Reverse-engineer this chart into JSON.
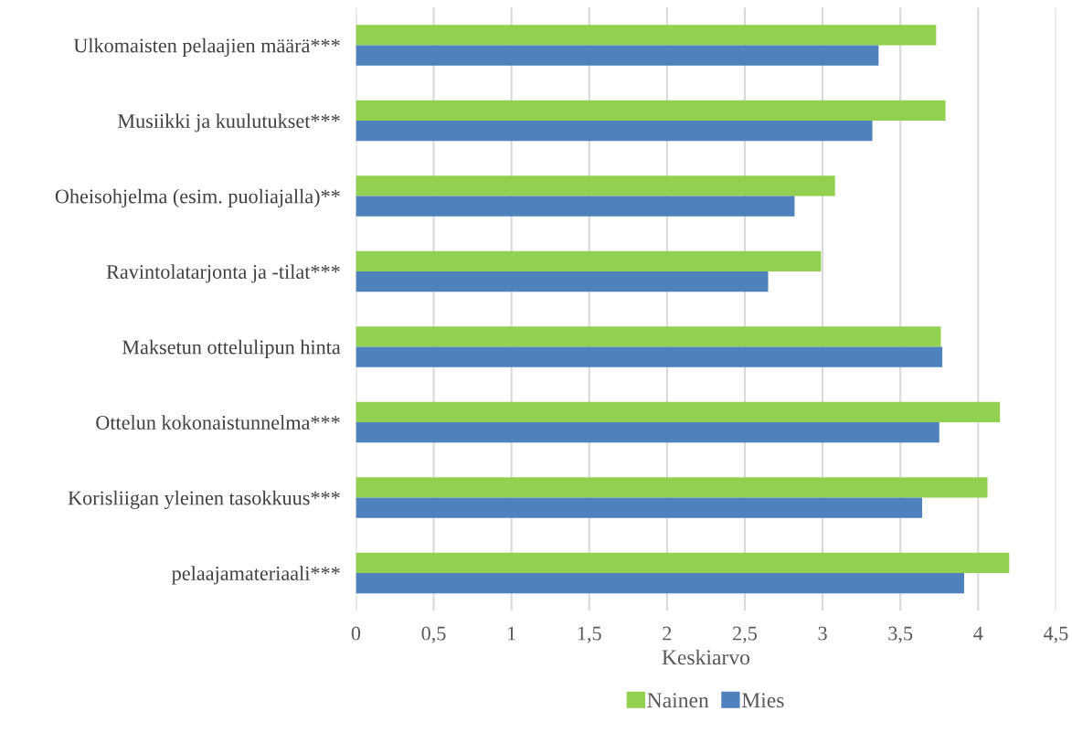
{
  "chart_data": {
    "type": "bar",
    "orientation": "horizontal",
    "xlabel": "Keskiarvo",
    "categories": [
      "Ulkomaisten pelaajien määrä***",
      "Musiikki ja kuulutukset***",
      "Oheisohjelma (esim. puoliajalla)**",
      "Ravintolatarjonta ja -tilat***",
      "Maksetun ottelulipun hinta",
      "Ottelun kokonaistunnelma***",
      "Korisliigan yleinen tasokkuus***",
      "pelaajamateriaali***"
    ],
    "series": [
      {
        "name": "Nainen",
        "color": "#92d050",
        "values": [
          3.73,
          3.79,
          3.08,
          2.99,
          3.76,
          4.14,
          4.06,
          4.2
        ]
      },
      {
        "name": "Mies",
        "color": "#4f81bd",
        "values": [
          3.36,
          3.32,
          2.82,
          2.65,
          3.77,
          3.75,
          3.64,
          3.91
        ]
      }
    ],
    "xlim": [
      0,
      4.5
    ],
    "xticks": [
      0,
      {
        "value": 0.5,
        "label": "0,5"
      },
      1,
      {
        "value": 1.5,
        "label": "1,5"
      },
      2,
      {
        "value": 2.5,
        "label": "2,5"
      },
      3,
      {
        "value": 3.5,
        "label": "3,5"
      },
      4,
      {
        "value": 4.5,
        "label": "4,5"
      }
    ],
    "grid": "x",
    "legend": "bottom"
  }
}
